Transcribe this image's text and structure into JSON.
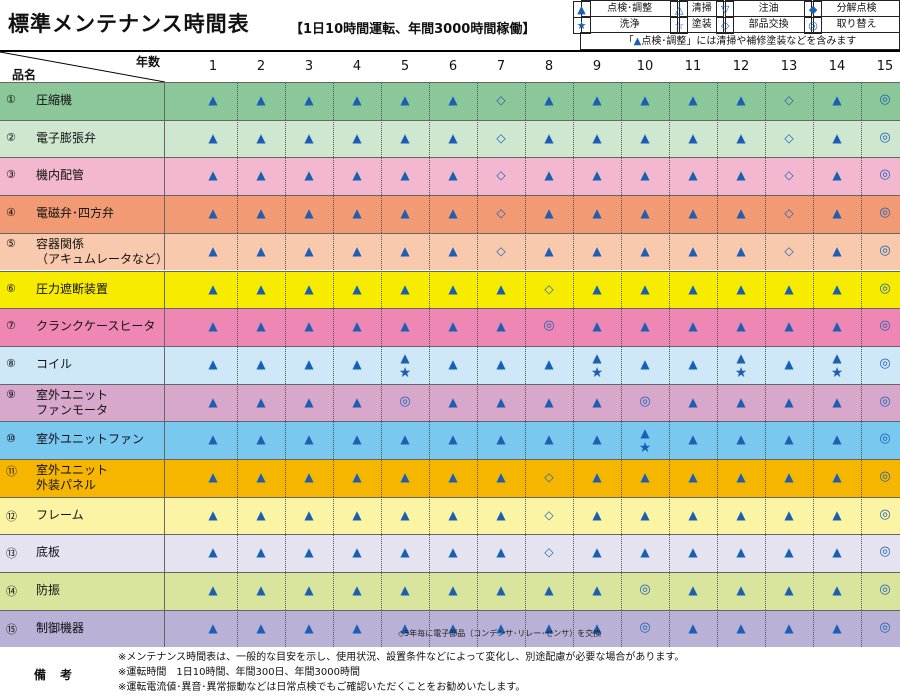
{
  "title": "標準メンテナンス時間表",
  "subtitle": "【1日10時間運転、年間3000時間稼働】",
  "legend": {
    "items": [
      {
        "icon": "triangle-filled-icon",
        "glyph": "▲",
        "label": "点検･調整"
      },
      {
        "icon": "triangle-outline-icon",
        "glyph": "△",
        "label": "清掃"
      },
      {
        "icon": "triangle-down-outline-icon",
        "glyph": "▽",
        "label": "注油"
      },
      {
        "icon": "diamond-filled-icon",
        "glyph": "◆",
        "label": "分解点検"
      },
      {
        "icon": "star-filled-icon",
        "glyph": "★",
        "label": "洗浄"
      },
      {
        "icon": "star-outline-icon",
        "glyph": "☆",
        "label": "塗装"
      },
      {
        "icon": "diamond-outline-icon",
        "glyph": "◇",
        "label": "部品交換"
      },
      {
        "icon": "double-circle-icon",
        "glyph": "◎",
        "label": "取り替え"
      }
    ],
    "note_prefix": "「",
    "note_glyph": "▲",
    "note_text": "点検･調整」には清掃や補修塗装などを含みます"
  },
  "header": {
    "years_label": "年数",
    "item_label": "品名"
  },
  "years": [
    "1",
    "2",
    "3",
    "4",
    "5",
    "6",
    "7",
    "8",
    "9",
    "10",
    "11",
    "12",
    "13",
    "14",
    "15"
  ],
  "glyphs": {
    "tri": "▲",
    "star": "★",
    "dia": "◇",
    "dbl": "◎"
  },
  "rows": [
    {
      "num": "①",
      "label": [
        "圧縮機"
      ],
      "color": "#8cc79a",
      "marks": {
        "1": [
          "tri"
        ],
        "2": [
          "tri"
        ],
        "3": [
          "tri"
        ],
        "4": [
          "tri"
        ],
        "5": [
          "tri"
        ],
        "6": [
          "tri"
        ],
        "7": [
          "dia"
        ],
        "8": [
          "tri"
        ],
        "9": [
          "tri"
        ],
        "10": [
          "tri"
        ],
        "11": [
          "tri"
        ],
        "12": [
          "tri"
        ],
        "13": [
          "dia"
        ],
        "14": [
          "tri"
        ],
        "15": [
          "dbl"
        ]
      }
    },
    {
      "num": "②",
      "label": [
        "電子膨張弁"
      ],
      "color": "#cfe6cf",
      "marks": {
        "1": [
          "tri"
        ],
        "2": [
          "tri"
        ],
        "3": [
          "tri"
        ],
        "4": [
          "tri"
        ],
        "5": [
          "tri"
        ],
        "6": [
          "tri"
        ],
        "7": [
          "dia"
        ],
        "8": [
          "tri"
        ],
        "9": [
          "tri"
        ],
        "10": [
          "tri"
        ],
        "11": [
          "tri"
        ],
        "12": [
          "tri"
        ],
        "13": [
          "dia"
        ],
        "14": [
          "tri"
        ],
        "15": [
          "dbl"
        ]
      }
    },
    {
      "num": "③",
      "label": [
        "機内配管"
      ],
      "color": "#f3b7cf",
      "marks": {
        "1": [
          "tri"
        ],
        "2": [
          "tri"
        ],
        "3": [
          "tri"
        ],
        "4": [
          "tri"
        ],
        "5": [
          "tri"
        ],
        "6": [
          "tri"
        ],
        "7": [
          "dia"
        ],
        "8": [
          "tri"
        ],
        "9": [
          "tri"
        ],
        "10": [
          "tri"
        ],
        "11": [
          "tri"
        ],
        "12": [
          "tri"
        ],
        "13": [
          "dia"
        ],
        "14": [
          "tri"
        ],
        "15": [
          "dbl"
        ]
      }
    },
    {
      "num": "④",
      "label": [
        "電磁弁･四方弁"
      ],
      "color": "#f19a74",
      "marks": {
        "1": [
          "tri"
        ],
        "2": [
          "tri"
        ],
        "3": [
          "tri"
        ],
        "4": [
          "tri"
        ],
        "5": [
          "tri"
        ],
        "6": [
          "tri"
        ],
        "7": [
          "dia"
        ],
        "8": [
          "tri"
        ],
        "9": [
          "tri"
        ],
        "10": [
          "tri"
        ],
        "11": [
          "tri"
        ],
        "12": [
          "tri"
        ],
        "13": [
          "dia"
        ],
        "14": [
          "tri"
        ],
        "15": [
          "dbl"
        ]
      }
    },
    {
      "num": "⑤",
      "label": [
        "容器関係",
        "（アキュムレータなど）"
      ],
      "color": "#f8c9ac",
      "marks": {
        "1": [
          "tri"
        ],
        "2": [
          "tri"
        ],
        "3": [
          "tri"
        ],
        "4": [
          "tri"
        ],
        "5": [
          "tri"
        ],
        "6": [
          "tri"
        ],
        "7": [
          "dia"
        ],
        "8": [
          "tri"
        ],
        "9": [
          "tri"
        ],
        "10": [
          "tri"
        ],
        "11": [
          "tri"
        ],
        "12": [
          "tri"
        ],
        "13": [
          "dia"
        ],
        "14": [
          "tri"
        ],
        "15": [
          "dbl"
        ]
      }
    },
    {
      "num": "⑥",
      "label": [
        "圧力遮断装置"
      ],
      "color": "#f7ec00",
      "marks": {
        "1": [
          "tri"
        ],
        "2": [
          "tri"
        ],
        "3": [
          "tri"
        ],
        "4": [
          "tri"
        ],
        "5": [
          "tri"
        ],
        "6": [
          "tri"
        ],
        "7": [
          "tri"
        ],
        "8": [
          "dia"
        ],
        "9": [
          "tri"
        ],
        "10": [
          "tri"
        ],
        "11": [
          "tri"
        ],
        "12": [
          "tri"
        ],
        "13": [
          "tri"
        ],
        "14": [
          "tri"
        ],
        "15": [
          "dbl"
        ]
      }
    },
    {
      "num": "⑦",
      "label": [
        "クランクケースヒータ"
      ],
      "color": "#ee87b4",
      "marks": {
        "1": [
          "tri"
        ],
        "2": [
          "tri"
        ],
        "3": [
          "tri"
        ],
        "4": [
          "tri"
        ],
        "5": [
          "tri"
        ],
        "6": [
          "tri"
        ],
        "7": [
          "tri"
        ],
        "8": [
          "dbl"
        ],
        "9": [
          "tri"
        ],
        "10": [
          "tri"
        ],
        "11": [
          "tri"
        ],
        "12": [
          "tri"
        ],
        "13": [
          "tri"
        ],
        "14": [
          "tri"
        ],
        "15": [
          "dbl"
        ]
      }
    },
    {
      "num": "⑧",
      "label": [
        "コイル"
      ],
      "color": "#cfe8f7",
      "marks": {
        "1": [
          "tri"
        ],
        "2": [
          "tri"
        ],
        "3": [
          "tri"
        ],
        "4": [
          "tri"
        ],
        "5": [
          "tri",
          "star"
        ],
        "6": [
          "tri"
        ],
        "7": [
          "tri"
        ],
        "8": [
          "tri"
        ],
        "9": [
          "tri",
          "star"
        ],
        "10": [
          "tri"
        ],
        "11": [
          "tri"
        ],
        "12": [
          "tri",
          "star"
        ],
        "13": [
          "tri"
        ],
        "14": [
          "tri",
          "star"
        ],
        "15": [
          "dbl"
        ]
      }
    },
    {
      "num": "⑨",
      "label": [
        "室外ユニット",
        "ファンモータ"
      ],
      "color": "#d7a8cc",
      "marks": {
        "1": [
          "tri"
        ],
        "2": [
          "tri"
        ],
        "3": [
          "tri"
        ],
        "4": [
          "tri"
        ],
        "5": [
          "dbl"
        ],
        "6": [
          "tri"
        ],
        "7": [
          "tri"
        ],
        "8": [
          "tri"
        ],
        "9": [
          "tri"
        ],
        "10": [
          "dbl"
        ],
        "11": [
          "tri"
        ],
        "12": [
          "tri"
        ],
        "13": [
          "tri"
        ],
        "14": [
          "tri"
        ],
        "15": [
          "dbl"
        ]
      }
    },
    {
      "num": "⑩",
      "label": [
        "室外ユニットファン"
      ],
      "color": "#79c8ef",
      "marks": {
        "1": [
          "tri"
        ],
        "2": [
          "tri"
        ],
        "3": [
          "tri"
        ],
        "4": [
          "tri"
        ],
        "5": [
          "tri"
        ],
        "6": [
          "tri"
        ],
        "7": [
          "tri"
        ],
        "8": [
          "tri"
        ],
        "9": [
          "tri"
        ],
        "10": [
          "tri",
          "star"
        ],
        "11": [
          "tri"
        ],
        "12": [
          "tri"
        ],
        "13": [
          "tri"
        ],
        "14": [
          "tri"
        ],
        "15": [
          "dbl"
        ]
      }
    },
    {
      "num": "⑪",
      "label": [
        "室外ユニット",
        "外装パネル"
      ],
      "color": "#f6b600",
      "marks": {
        "1": [
          "tri"
        ],
        "2": [
          "tri"
        ],
        "3": [
          "tri"
        ],
        "4": [
          "tri"
        ],
        "5": [
          "tri"
        ],
        "6": [
          "tri"
        ],
        "7": [
          "tri"
        ],
        "8": [
          "dia"
        ],
        "9": [
          "tri"
        ],
        "10": [
          "tri"
        ],
        "11": [
          "tri"
        ],
        "12": [
          "tri"
        ],
        "13": [
          "tri"
        ],
        "14": [
          "tri"
        ],
        "15": [
          "dbl"
        ]
      }
    },
    {
      "num": "⑫",
      "label": [
        "フレーム"
      ],
      "color": "#fbf4a4",
      "marks": {
        "1": [
          "tri"
        ],
        "2": [
          "tri"
        ],
        "3": [
          "tri"
        ],
        "4": [
          "tri"
        ],
        "5": [
          "tri"
        ],
        "6": [
          "tri"
        ],
        "7": [
          "tri"
        ],
        "8": [
          "dia"
        ],
        "9": [
          "tri"
        ],
        "10": [
          "tri"
        ],
        "11": [
          "tri"
        ],
        "12": [
          "tri"
        ],
        "13": [
          "tri"
        ],
        "14": [
          "tri"
        ],
        "15": [
          "dbl"
        ]
      }
    },
    {
      "num": "⑬",
      "label": [
        "底板"
      ],
      "color": "#e6e3f1",
      "marks": {
        "1": [
          "tri"
        ],
        "2": [
          "tri"
        ],
        "3": [
          "tri"
        ],
        "4": [
          "tri"
        ],
        "5": [
          "tri"
        ],
        "6": [
          "tri"
        ],
        "7": [
          "tri"
        ],
        "8": [
          "dia"
        ],
        "9": [
          "tri"
        ],
        "10": [
          "tri"
        ],
        "11": [
          "tri"
        ],
        "12": [
          "tri"
        ],
        "13": [
          "tri"
        ],
        "14": [
          "tri"
        ],
        "15": [
          "dbl"
        ]
      }
    },
    {
      "num": "⑭",
      "label": [
        "防振"
      ],
      "color": "#d9e59c",
      "marks": {
        "1": [
          "tri"
        ],
        "2": [
          "tri"
        ],
        "3": [
          "tri"
        ],
        "4": [
          "tri"
        ],
        "5": [
          "tri"
        ],
        "6": [
          "tri"
        ],
        "7": [
          "tri"
        ],
        "8": [
          "tri"
        ],
        "9": [
          "tri"
        ],
        "10": [
          "dbl"
        ],
        "11": [
          "tri"
        ],
        "12": [
          "tri"
        ],
        "13": [
          "tri"
        ],
        "14": [
          "tri"
        ],
        "15": [
          "dbl"
        ]
      }
    },
    {
      "num": "⑮",
      "label": [
        "制御機器"
      ],
      "color": "#b9b1d6",
      "marks": {
        "1": [
          "tri"
        ],
        "2": [
          "tri"
        ],
        "3": [
          "tri"
        ],
        "4": [
          "tri"
        ],
        "5": [
          "tri"
        ],
        "6": [
          "tri"
        ],
        "7": [
          "tri"
        ],
        "8": [
          "tri"
        ],
        "9": [
          "tri"
        ],
        "10": [
          "dbl"
        ],
        "11": [
          "tri"
        ],
        "12": [
          "tri"
        ],
        "13": [
          "tri"
        ],
        "14": [
          "tri"
        ],
        "15": [
          "dbl"
        ]
      }
    }
  ],
  "row15_note": "◇5年毎に電子部品（コンデンサ･リレー･センサ）を交換",
  "remarks": {
    "label": "備考",
    "lines": [
      "※メンテナンス時間表は、一般的な目安を示し、使用状況、設置条件などによって変化し、別途配慮が必要な場合があります。",
      "※運転時間　1日10時間、年間300日、年間3000時間",
      "※運転電流値･異音･異常振動などは日常点検でもご確認いただくことをお勧めいたします。"
    ]
  }
}
